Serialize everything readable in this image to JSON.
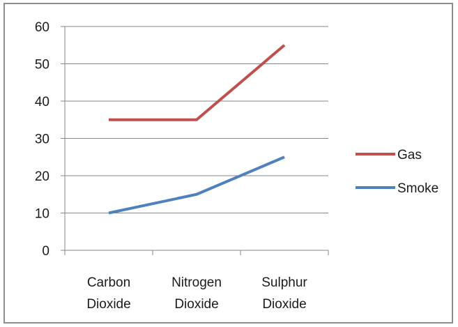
{
  "chart_data": {
    "type": "line",
    "title": "",
    "xlabel": "",
    "ylabel": "",
    "categories": [
      "Carbon Dioxide",
      "Nitrogen Dioxide",
      "Sulphur Dioxide"
    ],
    "category_lines": [
      [
        "Carbon",
        "Dioxide"
      ],
      [
        "Nitrogen",
        "Dioxide"
      ],
      [
        "Sulphur",
        "Dioxide"
      ]
    ],
    "ylim": [
      0,
      60
    ],
    "yticks": [
      0,
      10,
      20,
      30,
      40,
      50,
      60
    ],
    "grid": true,
    "legend_position": "right",
    "series": [
      {
        "name": "Gas",
        "values": [
          35,
          35,
          55
        ],
        "color": "#c0504d"
      },
      {
        "name": "Smoke",
        "values": [
          10,
          15,
          25
        ],
        "color": "#4f81bd"
      }
    ]
  }
}
